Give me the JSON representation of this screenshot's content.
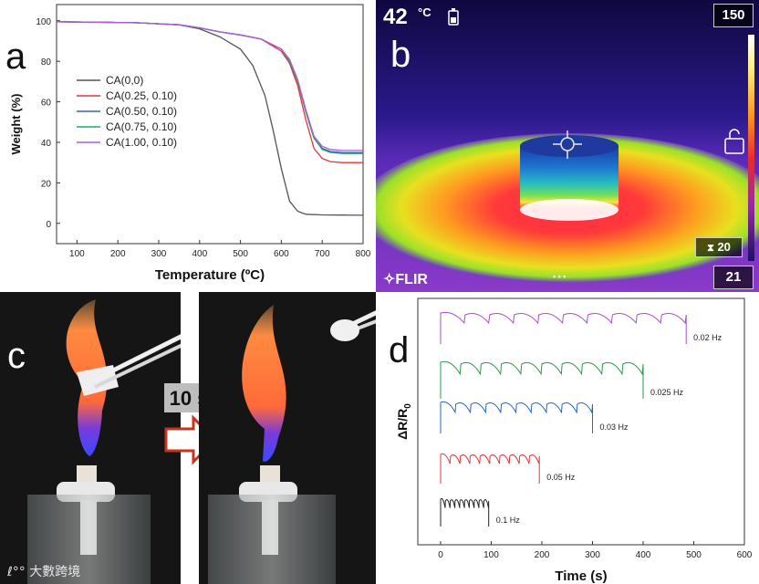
{
  "panels": {
    "a": "a",
    "b": "b",
    "c": "c",
    "d": "d"
  },
  "thermal": {
    "temp_readout": "42",
    "temp_unit": "°C",
    "scale_max": "150",
    "scale_min": "21",
    "emissivity_value": "20",
    "brand": "FLIR",
    "menu_dots": "• • •"
  },
  "flame": {
    "time_label": "10 s",
    "watermark": "大數跨境"
  },
  "chart_data": [
    {
      "type": "line",
      "panel": "a",
      "xlabel": "Temperature (ºC)",
      "ylabel": "Weight (%)",
      "xlim": [
        50,
        800
      ],
      "ylim": [
        -10,
        108
      ],
      "xticks": [
        100,
        200,
        300,
        400,
        500,
        600,
        700,
        800
      ],
      "yticks": [
        0,
        20,
        40,
        60,
        80,
        100
      ],
      "legend_position": "left-middle",
      "series": [
        {
          "name": "CA(0,0)",
          "color": "#555555",
          "x": [
            50,
            150,
            250,
            350,
            400,
            450,
            500,
            530,
            560,
            580,
            600,
            620,
            640,
            660,
            700,
            750,
            800
          ],
          "y": [
            99.5,
            99.3,
            99,
            98,
            96,
            92,
            86,
            78,
            63,
            46,
            27,
            11,
            6,
            4.5,
            4.2,
            4.1,
            4
          ]
        },
        {
          "name": "CA(0.25, 0.10)",
          "color": "#e8343a",
          "x": [
            50,
            150,
            250,
            350,
            400,
            450,
            500,
            550,
            600,
            620,
            640,
            660,
            680,
            700,
            720,
            750,
            800
          ],
          "y": [
            99.5,
            99.3,
            99,
            98,
            96.5,
            94.5,
            93,
            91,
            85,
            79,
            68,
            51,
            37,
            32,
            30.5,
            30,
            30
          ]
        },
        {
          "name": "CA(0.50, 0.10)",
          "color": "#2f61c9",
          "x": [
            50,
            150,
            250,
            350,
            400,
            450,
            500,
            550,
            600,
            620,
            640,
            660,
            680,
            700,
            720,
            750,
            800
          ],
          "y": [
            99.5,
            99.3,
            99,
            98,
            96.5,
            94.5,
            93,
            91,
            86,
            80,
            70,
            55,
            42,
            37,
            35.5,
            35,
            35
          ]
        },
        {
          "name": "CA(0.75, 0.10)",
          "color": "#2aa364",
          "x": [
            50,
            150,
            250,
            350,
            400,
            450,
            500,
            550,
            600,
            620,
            640,
            660,
            680,
            700,
            720,
            750,
            800
          ],
          "y": [
            99.5,
            99.3,
            99,
            98,
            96.5,
            94.5,
            93,
            91,
            86,
            80,
            70,
            55,
            42,
            36.5,
            35,
            34.5,
            34.5
          ]
        },
        {
          "name": "CA(1.00, 0.10)",
          "color": "#b15bd6",
          "x": [
            50,
            150,
            250,
            350,
            400,
            450,
            500,
            550,
            600,
            620,
            640,
            660,
            680,
            700,
            720,
            750,
            800
          ],
          "y": [
            99.5,
            99.3,
            99,
            98,
            96.5,
            94.5,
            93,
            91,
            86,
            81,
            71,
            56,
            43,
            38,
            36.5,
            36,
            36
          ]
        }
      ]
    },
    {
      "type": "line",
      "panel": "d",
      "xlabel": "Time (s)",
      "ylabel": "ΔR/R",
      "ylabel_sub": "0",
      "xlim": [
        -45,
        600
      ],
      "xticks": [
        0,
        100,
        200,
        300,
        400,
        500,
        600
      ],
      "series": [
        {
          "name": "0.02 Hz",
          "color": "#a64fc8",
          "duration": 485,
          "cycles": 10
        },
        {
          "name": "0.025 Hz",
          "color": "#2a9a48",
          "duration": 400,
          "cycles": 10
        },
        {
          "name": "0.03 Hz",
          "color": "#2466c4",
          "duration": 300,
          "cycles": 10
        },
        {
          "name": "0.05 Hz",
          "color": "#e23a3a",
          "duration": 195,
          "cycles": 10
        },
        {
          "name": "0.1 Hz",
          "color": "#222222",
          "duration": 95,
          "cycles": 10
        }
      ]
    }
  ]
}
